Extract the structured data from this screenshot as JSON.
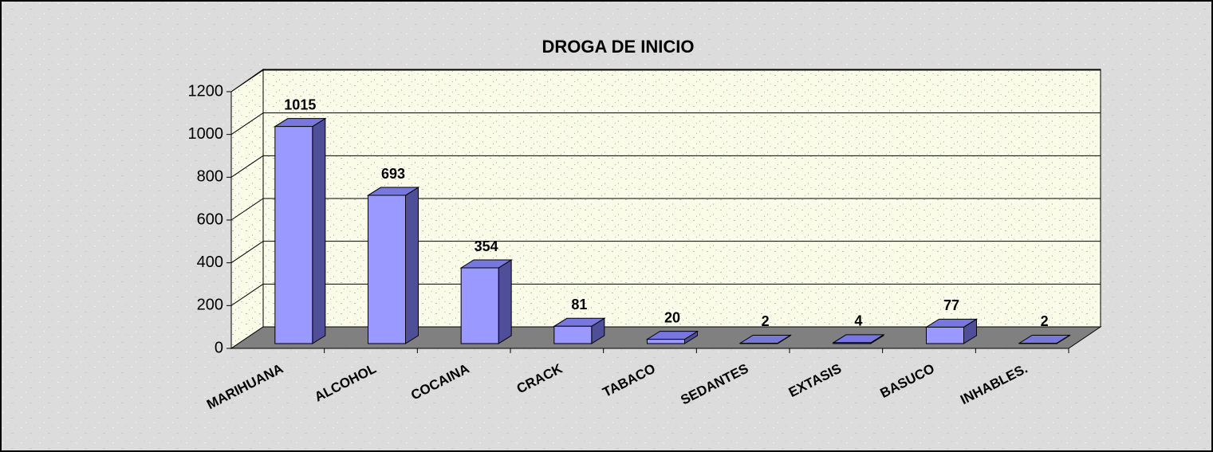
{
  "chart_data": {
    "type": "bar3d",
    "title": "DROGA DE INICIO",
    "categories": [
      "MARIHUANA",
      "ALCOHOL",
      "COCAINA",
      "CRACK",
      "TABACO",
      "SEDANTES",
      "EXTASIS",
      "BASUCO",
      "INHABLES."
    ],
    "values": [
      1015,
      693,
      354,
      81,
      20,
      2,
      4,
      77,
      2
    ],
    "color": "#9999ff",
    "ylim": [
      0,
      1200
    ],
    "yticks": [
      0,
      200,
      400,
      600,
      800,
      1000,
      1200
    ],
    "grid": true
  }
}
